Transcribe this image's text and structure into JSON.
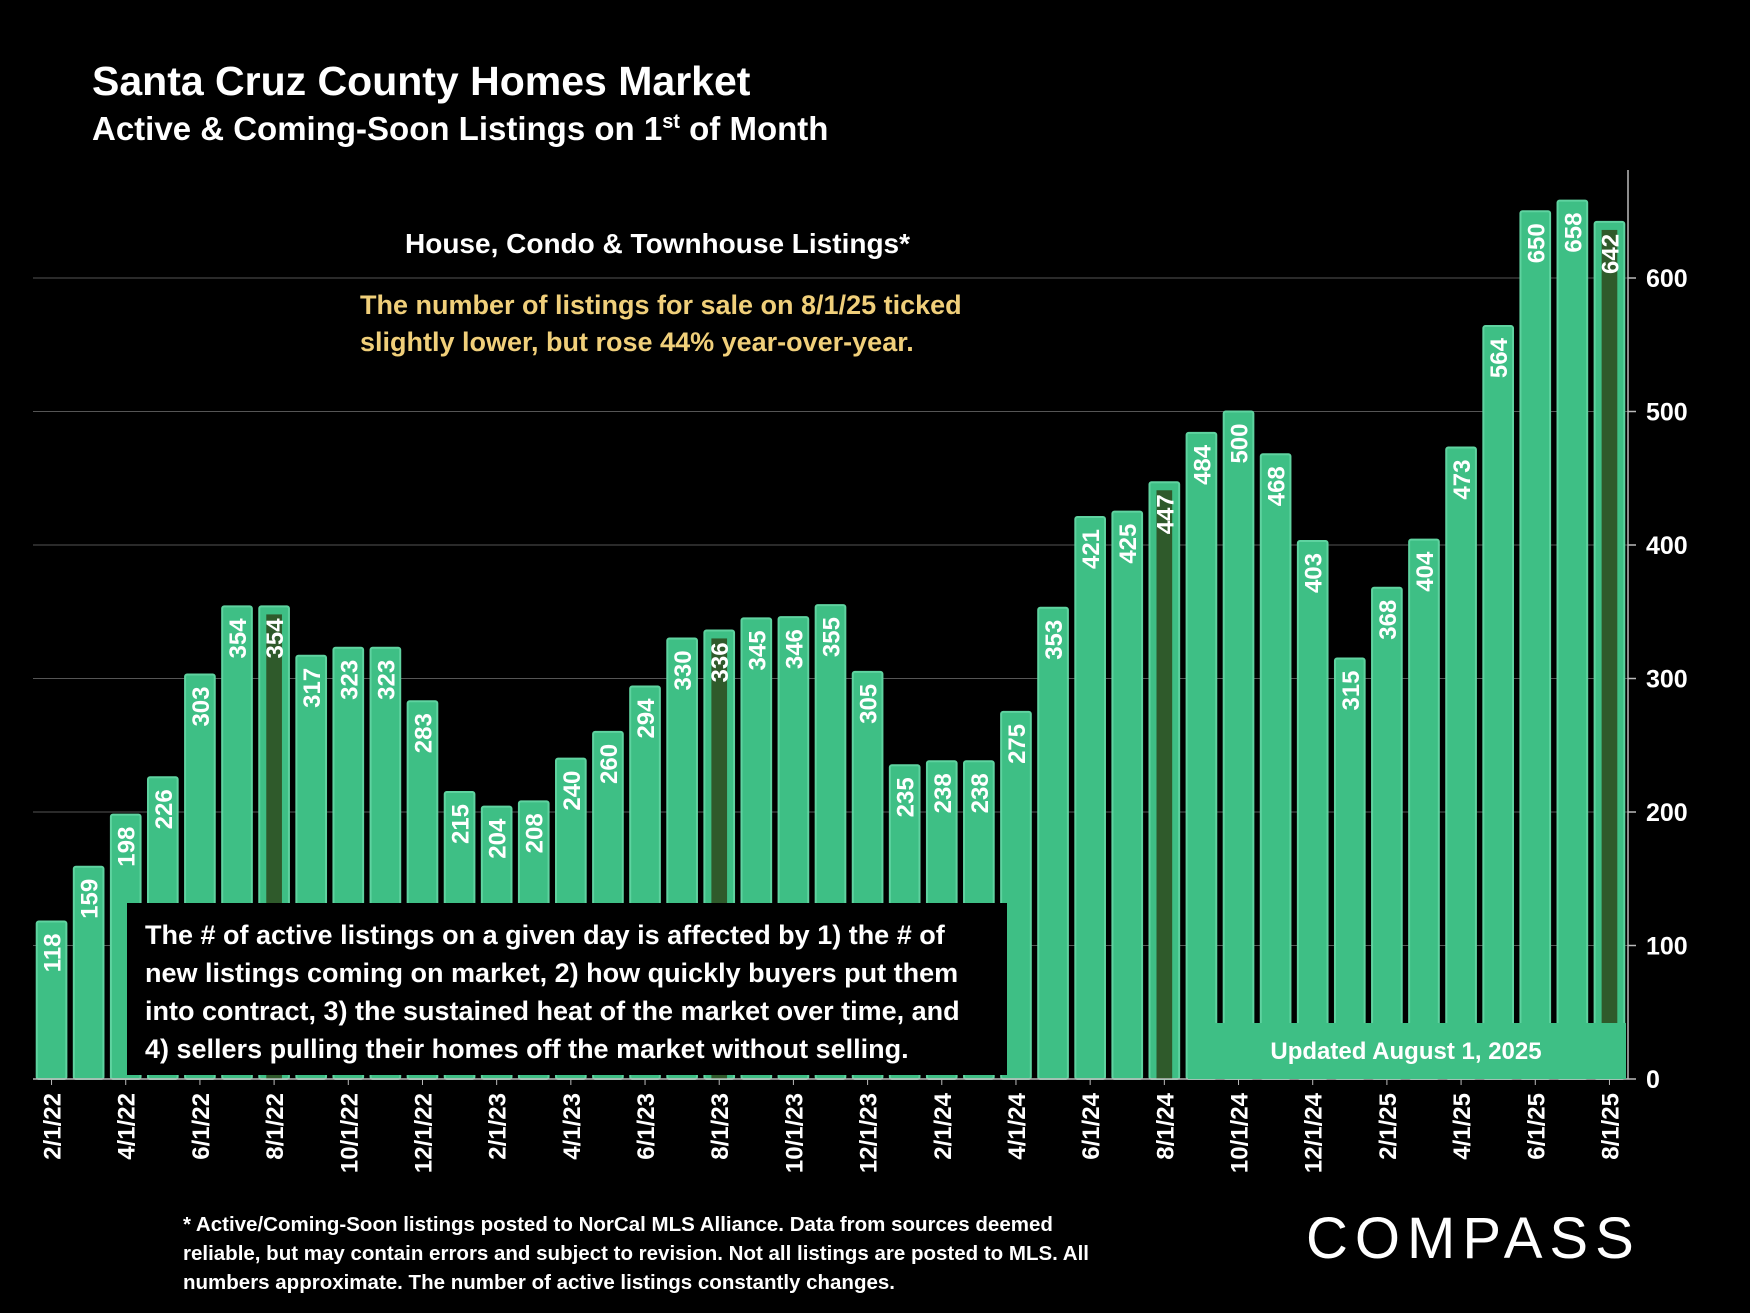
{
  "title": "Santa Cruz County Homes Market",
  "subtitle_main": "Active & Coming-Soon Listings on 1",
  "subtitle_sup": "st",
  "subtitle_end": " of Month",
  "footnote": "* Active/Coming-Soon listings posted to NorCal MLS Alliance.  Data from sources deemed reliable, but may contain errors and subject to revision.  Not all listings are posted to MLS. All numbers approximate. The number of active listings constantly changes.",
  "logo_text": "COMPASS",
  "colors": {
    "bar": "#3ebf85",
    "bar_edge": "#5fd3a0",
    "highlight": "#2f5a2b",
    "annotation": "#f0cf7a",
    "background": "#000000"
  },
  "chart_data": {
    "type": "bar",
    "series_name": "House, Condo & Townhouse Listings*",
    "categories": [
      "2/1/22",
      "3/1/22",
      "4/1/22",
      "5/1/22",
      "6/1/22",
      "7/1/22",
      "8/1/22",
      "9/1/22",
      "10/1/22",
      "11/1/22",
      "12/1/22",
      "1/1/23",
      "2/1/23",
      "3/1/23",
      "4/1/23",
      "5/1/23",
      "6/1/23",
      "7/1/23",
      "8/1/23",
      "9/1/23",
      "10/1/23",
      "11/1/23",
      "12/1/23",
      "1/1/24",
      "2/1/24",
      "3/1/24",
      "4/1/24",
      "5/1/24",
      "6/1/24",
      "7/1/24",
      "8/1/24",
      "9/1/24",
      "10/1/24",
      "11/1/24",
      "12/1/24",
      "1/1/25",
      "2/1/25",
      "3/1/25",
      "4/1/25",
      "5/1/25",
      "6/1/25",
      "7/1/25",
      "8/1/25"
    ],
    "values": [
      118,
      159,
      198,
      226,
      303,
      354,
      354,
      317,
      323,
      323,
      283,
      215,
      204,
      208,
      240,
      260,
      294,
      330,
      336,
      345,
      346,
      355,
      305,
      235,
      238,
      238,
      275,
      353,
      421,
      425,
      447,
      484,
      500,
      468,
      403,
      315,
      368,
      404,
      473,
      564,
      650,
      658,
      642
    ],
    "highlighted": [
      "8/1/22",
      "8/1/23",
      "8/1/24",
      "8/1/25"
    ],
    "tick_labels": [
      "2/1/22",
      "4/1/22",
      "6/1/22",
      "8/1/22",
      "10/1/22",
      "12/1/22",
      "2/1/23",
      "4/1/23",
      "6/1/23",
      "8/1/23",
      "10/1/23",
      "12/1/23",
      "2/1/24",
      "4/1/24",
      "6/1/24",
      "8/1/24",
      "10/1/24",
      "12/1/24",
      "2/1/25",
      "4/1/25",
      "6/1/25",
      "8/1/25"
    ],
    "yticks": [
      0,
      100,
      200,
      300,
      400,
      500,
      600
    ],
    "ylim": [
      0,
      680
    ],
    "y_axis_side": "right",
    "grid": true,
    "legend_position": "top-center",
    "annotation": "The number of listings for sale on 8/1/25 ticked slightly lower, but rose 44% year-over-year.",
    "explanation_box": "The # of active listings on a given day is affected by 1) the # of new listings coming on market, 2) how quickly buyers put them into contract, 3) the sustained heat of the market over time, and 4) sellers pulling their homes off the market without selling.",
    "updated_label": "Updated August 1, 2025"
  }
}
